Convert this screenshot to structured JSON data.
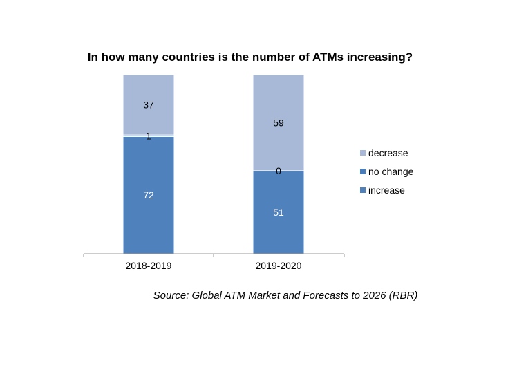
{
  "chart_data": {
    "type": "bar",
    "stacked": true,
    "title": "In how many countries is the number of ATMs increasing?",
    "categories": [
      "2018-2019",
      "2019-2020"
    ],
    "series": [
      {
        "name": "increase",
        "values": [
          72,
          51
        ],
        "color": "#4f81bd",
        "label_color": "#ffffff"
      },
      {
        "name": "no change",
        "values": [
          1,
          0
        ],
        "color": "#4a7ebb",
        "label_color": "#000000"
      },
      {
        "name": "decrease",
        "values": [
          37,
          59
        ],
        "color": "#a7b9d7",
        "label_color": "#000000"
      }
    ],
    "legend_order": [
      "decrease",
      "no change",
      "increase"
    ],
    "legend_position": "right",
    "grid": false,
    "source": "Source: Global ATM Market and Forecasts to 2026 (RBR)"
  }
}
